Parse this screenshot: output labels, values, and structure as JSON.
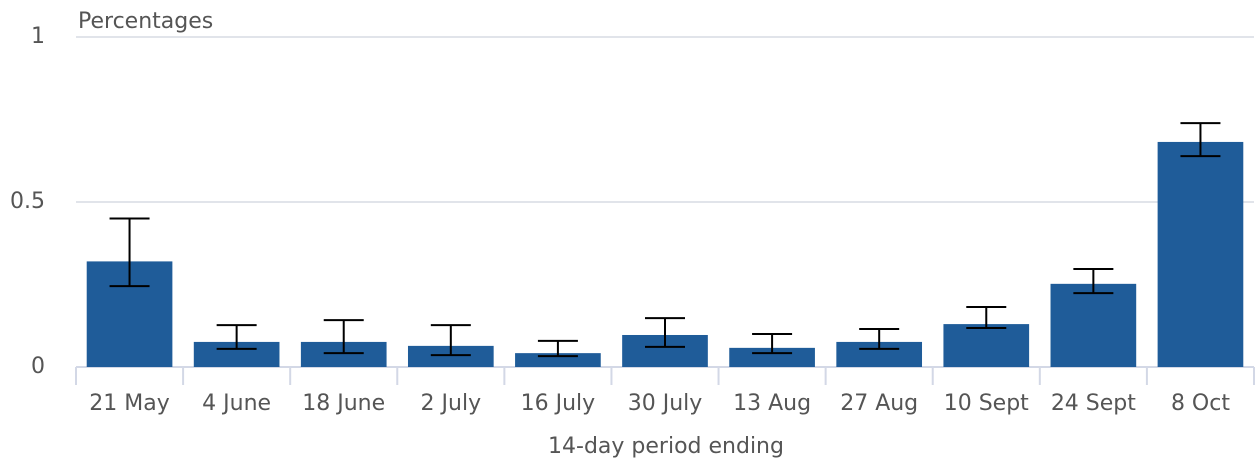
{
  "chart_data": {
    "type": "bar",
    "y_label": "Percentages",
    "x_label": "14-day period ending",
    "categories": [
      "21 May",
      "4 June",
      "18 June",
      "2 July",
      "16 July",
      "30 July",
      "13 Aug",
      "27 Aug",
      "10 Sept",
      "24 Sept",
      "8 Oct"
    ],
    "values": [
      0.32,
      0.076,
      0.076,
      0.064,
      0.042,
      0.097,
      0.058,
      0.076,
      0.13,
      0.252,
      0.682
    ],
    "lower": [
      0.245,
      0.055,
      0.042,
      0.036,
      0.033,
      0.061,
      0.042,
      0.055,
      0.118,
      0.224,
      0.639
    ],
    "upper": [
      0.45,
      0.127,
      0.142,
      0.127,
      0.079,
      0.148,
      0.1,
      0.115,
      0.182,
      0.297,
      0.739
    ],
    "color": "#1f5c99",
    "ylim": [
      0,
      1
    ],
    "yticks": [
      0,
      0.5,
      1
    ],
    "grid": true
  }
}
